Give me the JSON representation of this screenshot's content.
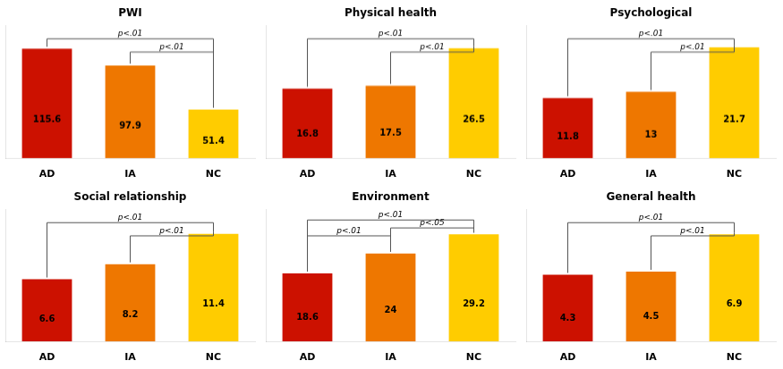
{
  "chart_data": [
    {
      "type": "bar",
      "title": "PWI",
      "categories": [
        "AD",
        "IA",
        "NC"
      ],
      "values": [
        115.6,
        97.9,
        51.4
      ],
      "colors": [
        "#cc1100",
        "#ee7700",
        "#ffcc00"
      ],
      "ylim": [
        0,
        140
      ],
      "data_labels": true,
      "tick_labels": "x",
      "grid": false,
      "annotations": [
        {
          "from": "AD",
          "to": "NC",
          "y": 126,
          "label": "p<.01"
        },
        {
          "from": "IA",
          "to": "NC",
          "y": 112,
          "label": "p<.01"
        }
      ]
    },
    {
      "type": "bar",
      "title": "Physical health",
      "categories": [
        "AD",
        "IA",
        "NC"
      ],
      "values": [
        16.8,
        17.5,
        26.5
      ],
      "colors": [
        "#cc1100",
        "#ee7700",
        "#ffcc00"
      ],
      "ylim": [
        0,
        32
      ],
      "data_labels": true,
      "tick_labels": "x",
      "grid": false,
      "annotations": [
        {
          "from": "AD",
          "to": "NC",
          "y": 28.8,
          "label": "p<.01"
        },
        {
          "from": "IA",
          "to": "NC",
          "y": 25.6,
          "label": "p<.01"
        }
      ]
    },
    {
      "type": "bar",
      "title": "Psychological",
      "categories": [
        "AD",
        "IA",
        "NC"
      ],
      "values": [
        11.8,
        13.0,
        21.7
      ],
      "colors": [
        "#cc1100",
        "#ee7700",
        "#ffcc00"
      ],
      "ylim": [
        0,
        26
      ],
      "data_labels": true,
      "tick_labels": "x",
      "grid": false,
      "annotations": [
        {
          "from": "AD",
          "to": "NC",
          "y": 23.4,
          "label": "p<.01"
        },
        {
          "from": "IA",
          "to": "NC",
          "y": 20.8,
          "label": "p<.01"
        }
      ]
    },
    {
      "type": "bar",
      "title": "Social relationship",
      "categories": [
        "AD",
        "IA",
        "NC"
      ],
      "values": [
        6.6,
        8.2,
        11.4
      ],
      "colors": [
        "#cc1100",
        "#ee7700",
        "#ffcc00"
      ],
      "ylim": [
        0,
        14
      ],
      "data_labels": true,
      "tick_labels": "x",
      "grid": false,
      "annotations": [
        {
          "from": "AD",
          "to": "NC",
          "y": 12.6,
          "label": "p<.01"
        },
        {
          "from": "IA",
          "to": "NC",
          "y": 11.2,
          "label": "p<.01"
        }
      ]
    },
    {
      "type": "bar",
      "title": "Environment",
      "categories": [
        "AD",
        "IA",
        "NC"
      ],
      "values": [
        18.6,
        24.0,
        29.2
      ],
      "colors": [
        "#cc1100",
        "#ee7700",
        "#ffcc00"
      ],
      "ylim": [
        0,
        36
      ],
      "data_labels": true,
      "tick_labels": "x",
      "grid": false,
      "annotations": [
        {
          "from": "AD",
          "to": "NC",
          "y": 33.12,
          "label": "p<.01"
        },
        {
          "from": "AD",
          "to": "IA",
          "y": 28.8,
          "label": "p<.01"
        },
        {
          "from": "IA",
          "to": "NC",
          "y": 30.96,
          "label": "p<.05"
        }
      ]
    },
    {
      "type": "bar",
      "title": "General health",
      "categories": [
        "AD",
        "IA",
        "NC"
      ],
      "values": [
        4.3,
        4.5,
        6.9
      ],
      "colors": [
        "#cc1100",
        "#ee7700",
        "#ffcc00"
      ],
      "ylim": [
        0,
        8.5
      ],
      "data_labels": true,
      "tick_labels": "x",
      "grid": false,
      "annotations": [
        {
          "from": "AD",
          "to": "NC",
          "y": 7.65,
          "label": "p<.01"
        },
        {
          "from": "IA",
          "to": "NC",
          "y": 6.8,
          "label": "p<.01"
        }
      ]
    }
  ]
}
